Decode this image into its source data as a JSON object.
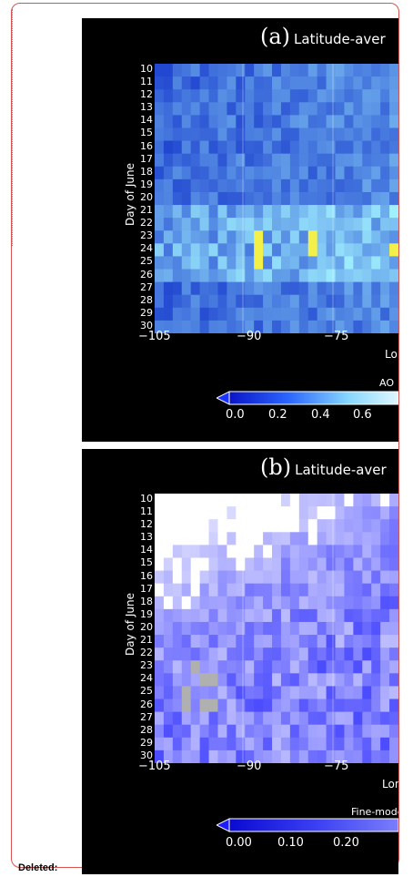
{
  "footer": {
    "deleted_label": "Deleted:"
  },
  "colors": {
    "frame": "#d9534f",
    "panel_bg": "#000000"
  },
  "panel_a": {
    "letter": "(a)",
    "title": "Latitude-aver",
    "ylabel": "Day of June",
    "yticks": [
      "10",
      "11",
      "12",
      "13",
      "14",
      "15",
      "16",
      "17",
      "18",
      "19",
      "20",
      "21",
      "22",
      "23",
      "24",
      "25",
      "26",
      "27",
      "28",
      "29",
      "30"
    ],
    "xticks": [
      "-105",
      "-90",
      "-75"
    ],
    "xlabel_partial": "Lo",
    "colorbar_label": "AO",
    "colorbar_ticks": [
      "0.0",
      "0.2",
      "0.4",
      "0.6"
    ]
  },
  "panel_b": {
    "letter": "(b)",
    "title": "Latitude-aver",
    "ylabel": "Day of June",
    "yticks": [
      "10",
      "11",
      "12",
      "13",
      "14",
      "15",
      "16",
      "17",
      "18",
      "19",
      "20",
      "21",
      "22",
      "23",
      "24",
      "25",
      "26",
      "27",
      "28",
      "29",
      "30"
    ],
    "xticks": [
      "-105",
      "-90",
      "-75"
    ],
    "xlabel_partial": "Lon",
    "colorbar_label": "Fine-mode",
    "colorbar_ticks": [
      "0.00",
      "0.10",
      "0.20"
    ]
  }
}
